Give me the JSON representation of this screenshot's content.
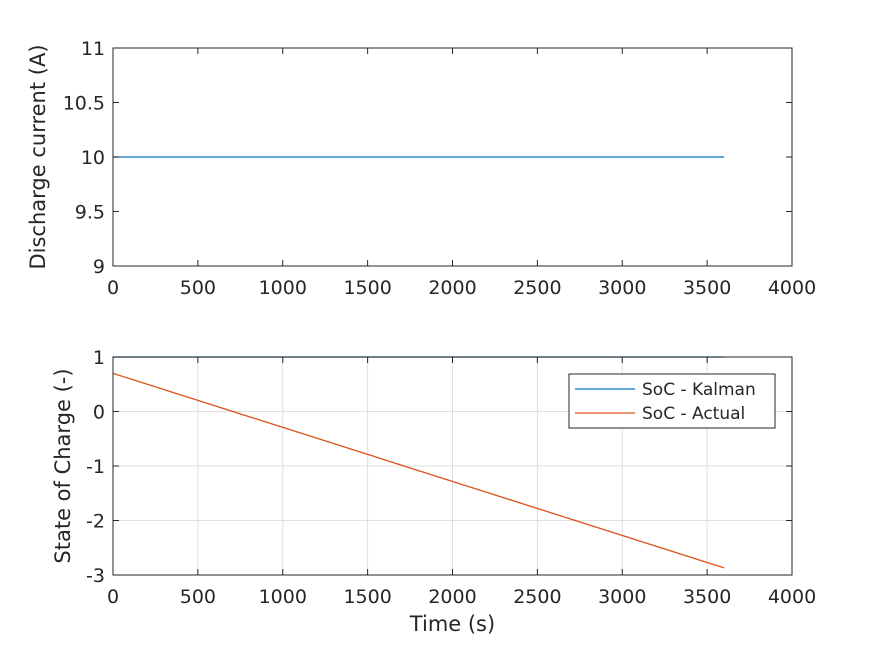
{
  "chart_data": [
    {
      "type": "line",
      "title": "",
      "xlabel": "",
      "ylabel": "Discharge current (A)",
      "xlim": [
        0,
        4000
      ],
      "ylim": [
        9,
        11
      ],
      "xticks": [
        "0",
        "500",
        "1000",
        "1500",
        "2000",
        "2500",
        "3000",
        "3500",
        "4000"
      ],
      "yticks": [
        "9",
        "9.5",
        "10",
        "10.5",
        "11"
      ],
      "grid": false,
      "series": [
        {
          "name": "",
          "color": "#0072BD",
          "x": [
            0,
            3600
          ],
          "y": [
            10,
            10
          ]
        }
      ]
    },
    {
      "type": "line",
      "title": "",
      "xlabel": "Time (s)",
      "ylabel": "State of Charge (-)",
      "xlim": [
        0,
        4000
      ],
      "ylim": [
        -3,
        1
      ],
      "xticks": [
        "0",
        "500",
        "1000",
        "1500",
        "2000",
        "2500",
        "3000",
        "3500",
        "4000"
      ],
      "yticks": [
        "-3",
        "-2",
        "-1",
        "0",
        "1"
      ],
      "grid": true,
      "legend_position": "top-right",
      "series": [
        {
          "name": "SoC - Kalman",
          "color": "#0072BD",
          "x": [
            0,
            3600
          ],
          "y": [
            1,
            1
          ]
        },
        {
          "name": "SoC - Actual",
          "color": "#D95319",
          "x": [
            0,
            3600
          ],
          "y": [
            0.7,
            -2.87
          ]
        }
      ]
    }
  ]
}
